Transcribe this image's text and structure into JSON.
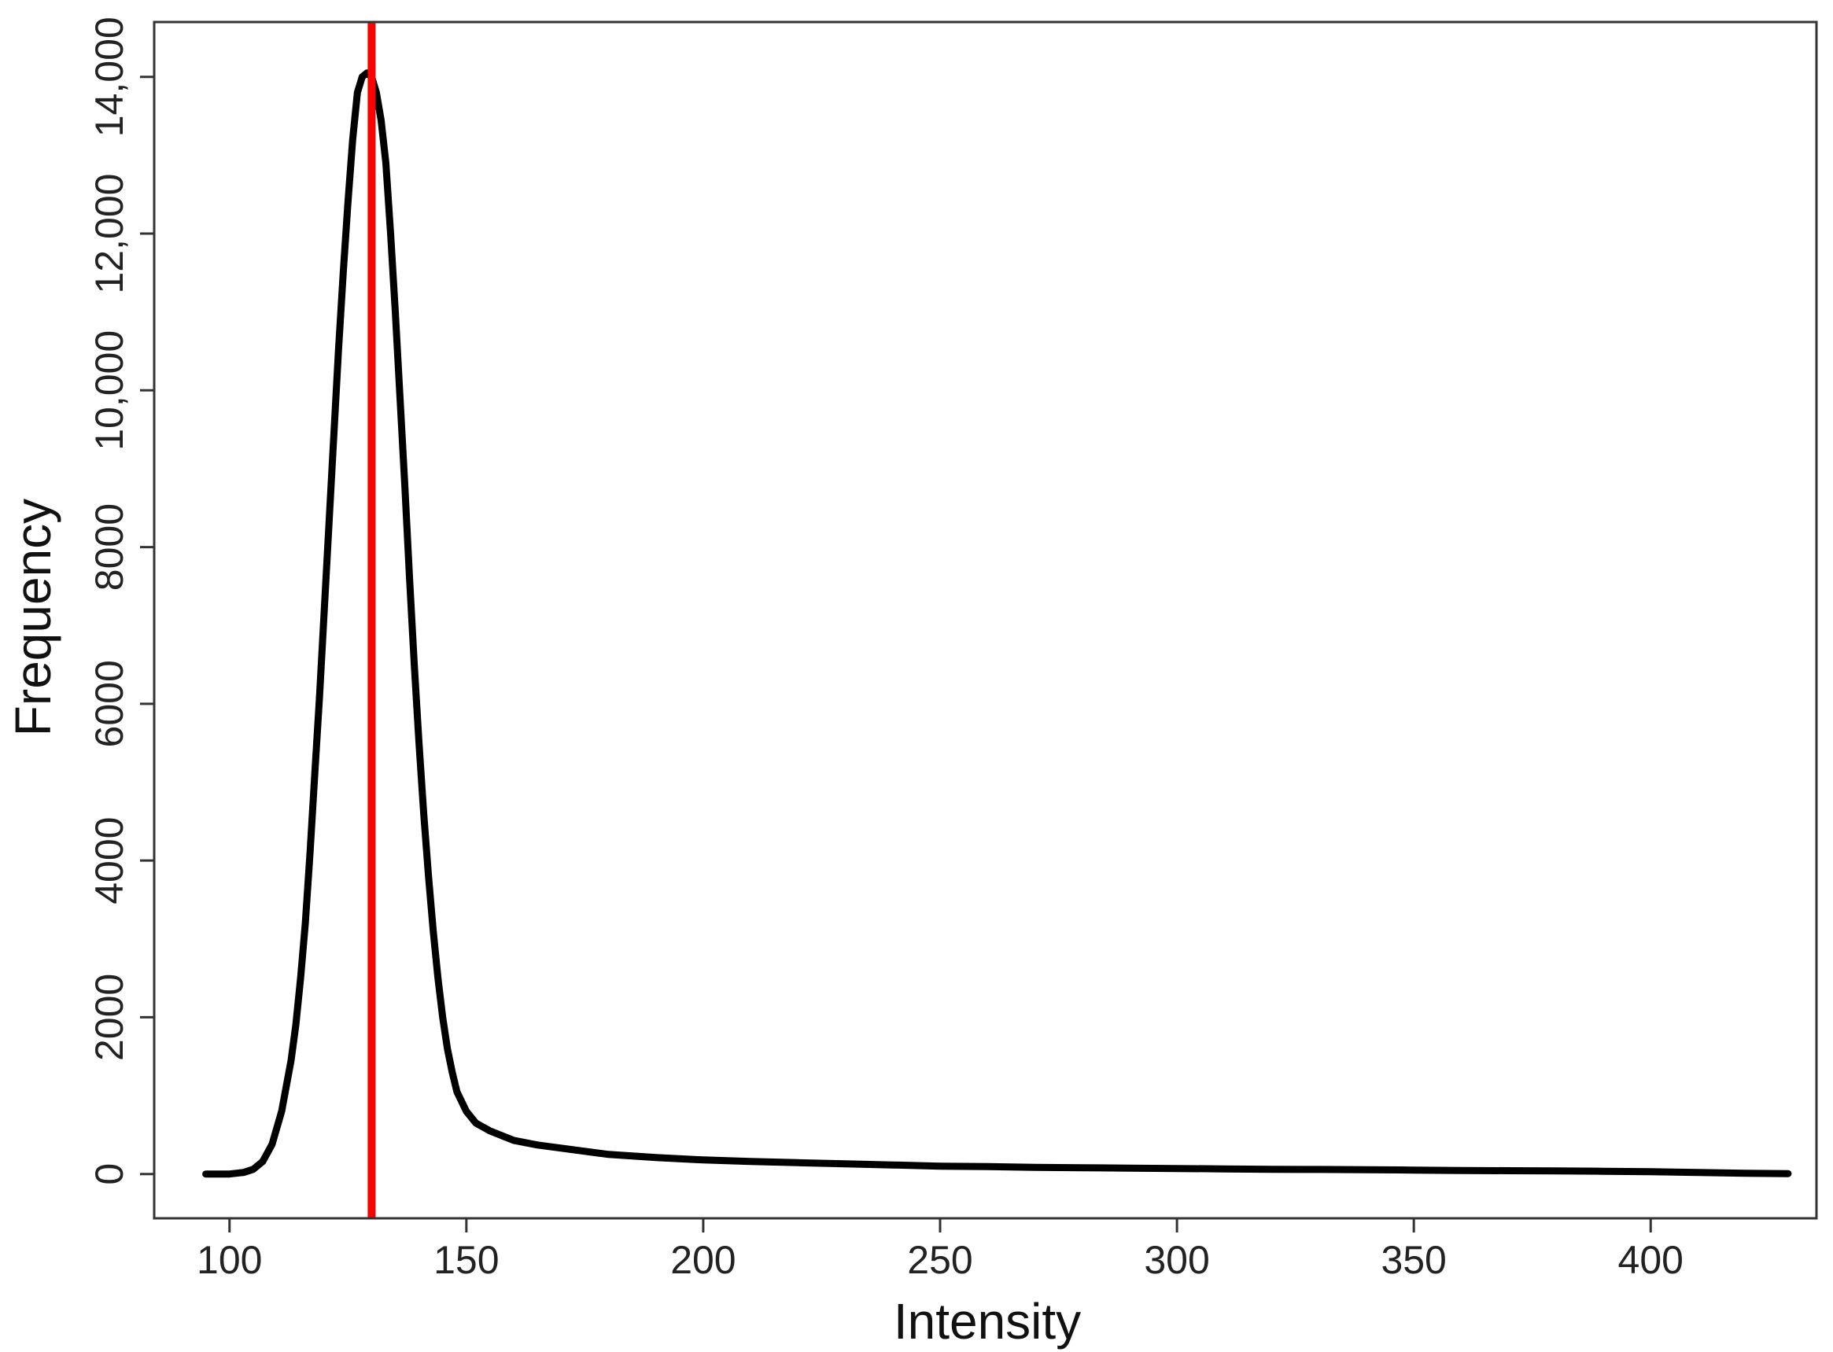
{
  "chart_data": {
    "type": "line",
    "title": "",
    "xlabel": "Intensity",
    "ylabel": "Frequency",
    "xlim": [
      84.1,
      435.0
    ],
    "ylim": [
      -565,
      14700
    ],
    "x_ticks": [
      {
        "value": 100,
        "label": "100"
      },
      {
        "value": 150,
        "label": "150"
      },
      {
        "value": 200,
        "label": "200"
      },
      {
        "value": 250,
        "label": "250"
      },
      {
        "value": 300,
        "label": "300"
      },
      {
        "value": 350,
        "label": "350"
      },
      {
        "value": 400,
        "label": "400"
      }
    ],
    "y_ticks": [
      {
        "value": 0,
        "label": "0"
      },
      {
        "value": 2000,
        "label": "2000"
      },
      {
        "value": 4000,
        "label": "4000"
      },
      {
        "value": 6000,
        "label": "6000"
      },
      {
        "value": 8000,
        "label": "8000"
      },
      {
        "value": 10000,
        "label": "10,000"
      },
      {
        "value": 12000,
        "label": "12,000"
      },
      {
        "value": 14000,
        "label": "14,000"
      }
    ],
    "grid": false,
    "legend": "none",
    "series": [
      {
        "color": "#000000",
        "x": [
          95,
          100,
          103,
          105,
          107,
          109,
          111,
          113,
          114,
          115,
          116,
          117,
          118,
          119,
          120,
          121,
          122,
          123,
          124,
          125,
          126,
          127,
          128,
          129,
          130,
          131,
          132,
          133,
          134,
          135,
          136,
          137,
          138,
          139,
          140,
          141,
          142,
          143,
          144,
          145,
          146,
          147,
          148,
          150,
          152,
          155,
          160,
          165,
          170,
          175,
          180,
          190,
          200,
          210,
          220,
          230,
          240,
          250,
          260,
          270,
          280,
          290,
          300,
          310,
          320,
          330,
          340,
          350,
          360,
          370,
          380,
          390,
          400,
          410,
          420,
          429
        ],
        "y": [
          0,
          0,
          20,
          60,
          160,
          380,
          800,
          1450,
          1900,
          2500,
          3200,
          4100,
          5100,
          6100,
          7200,
          8300,
          9400,
          10500,
          11500,
          12400,
          13200,
          13800,
          14000,
          14050,
          14000,
          13800,
          13450,
          12900,
          12000,
          11000,
          9900,
          8800,
          7600,
          6500,
          5500,
          4600,
          3800,
          3100,
          2500,
          2000,
          1600,
          1300,
          1050,
          800,
          650,
          550,
          430,
          370,
          330,
          290,
          250,
          210,
          180,
          160,
          145,
          130,
          115,
          100,
          95,
          85,
          80,
          75,
          70,
          65,
          60,
          58,
          55,
          50,
          45,
          42,
          40,
          35,
          30,
          20,
          10,
          5
        ]
      }
    ],
    "annotations": [
      {
        "type": "vline",
        "x": 130,
        "color": "#ff0000"
      }
    ]
  }
}
